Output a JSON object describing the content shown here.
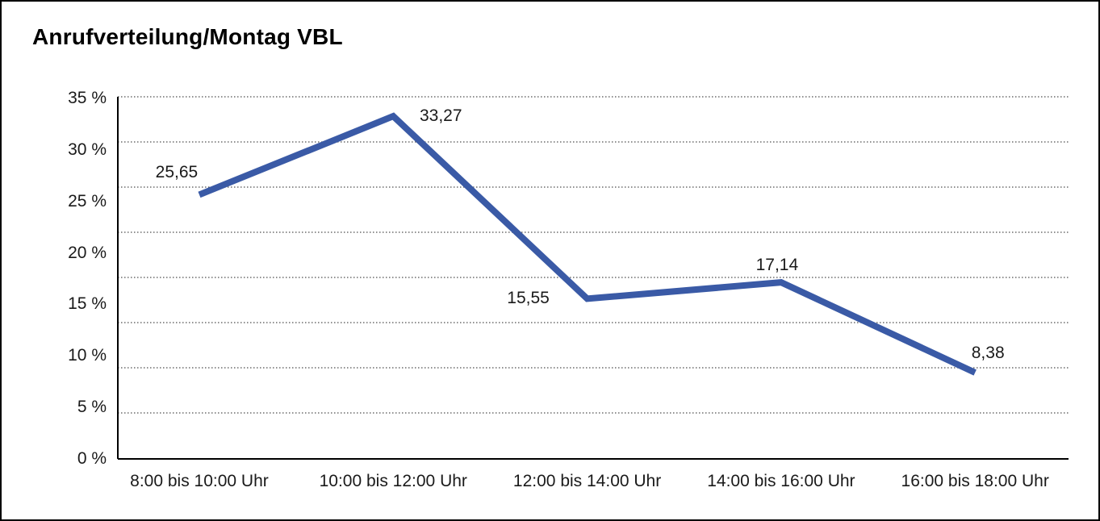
{
  "window": {
    "background": "#ffffff",
    "border_color": "#000000"
  },
  "chart_data": {
    "type": "line",
    "title": "Anrufverteilung/Montag VBL",
    "categories": [
      "8:00 bis 10:00 Uhr",
      "10:00 bis 12:00 Uhr",
      "12:00 bis 14:00 Uhr",
      "14:00 bis 16:00 Uhr",
      "16:00 bis 18:00 Uhr"
    ],
    "values": [
      25.65,
      33.27,
      15.55,
      17.14,
      8.38
    ],
    "data_labels": [
      "25,65",
      "33,27",
      "15,55",
      "17,14",
      "8,38"
    ],
    "yticks": [
      "0 %",
      "5 %",
      "10 %",
      "15 %",
      "20 %",
      "25 %",
      "30 %",
      "35 %"
    ],
    "ylim": [
      0,
      35
    ],
    "xlabel": "",
    "ylabel": "",
    "grid": true,
    "grid_divisions": 8,
    "grid_style": "dotted",
    "legend": "none",
    "line_color": "#3A5AA6",
    "axis_color": "#000000",
    "grid_color": "#4d4d4d",
    "text_color": "#1a1a1a"
  }
}
